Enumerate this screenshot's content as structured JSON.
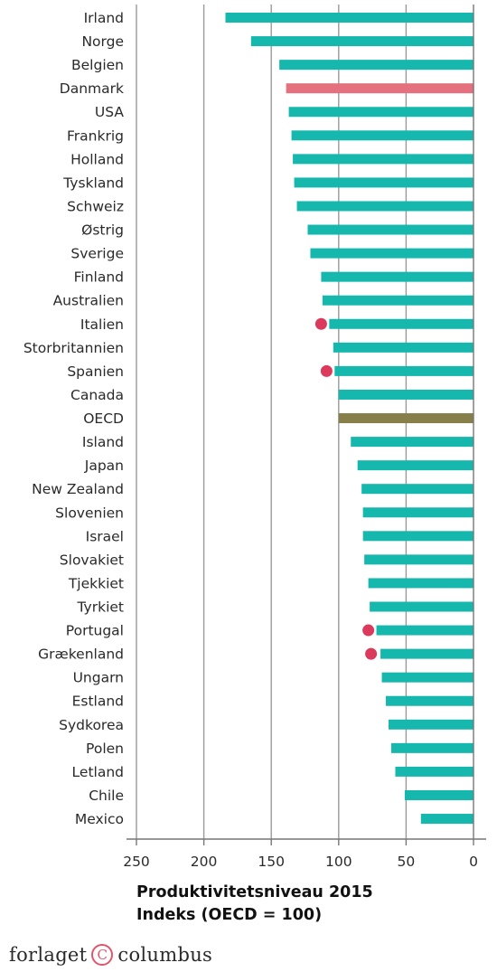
{
  "chart_data": {
    "type": "bar",
    "orientation": "horizontal",
    "xlabel": "Produktivitetsniveau 2015",
    "xlabel2": "Indeks (OECD = 100)",
    "xlim": [
      250,
      0
    ],
    "xticks": [
      250,
      200,
      150,
      100,
      50,
      0
    ],
    "grid": true,
    "colors": {
      "default": "#16b8ad",
      "highlight": "#e5707e",
      "benchmark": "#877f49",
      "marker": "#dc3a5c"
    },
    "categories": [
      "Irland",
      "Norge",
      "Belgien",
      "Danmark",
      "USA",
      "Frankrig",
      "Holland",
      "Tyskland",
      "Schweiz",
      "Østrig",
      "Sverige",
      "Finland",
      "Australien",
      "Italien",
      "Storbritannien",
      "Spanien",
      "Canada",
      "OECD",
      "Island",
      "Japan",
      "New Zealand",
      "Slovenien",
      "Israel",
      "Slovakiet",
      "Tjekkiet",
      "Tyrkiet",
      "Portugal",
      "Grækenland",
      "Ungarn",
      "Estland",
      "Sydkorea",
      "Polen",
      "Letland",
      "Chile",
      "Mexico"
    ],
    "values": [
      184,
      165,
      144,
      139,
      137,
      135,
      134,
      133,
      131,
      123,
      121,
      113,
      112,
      107,
      104,
      103,
      100,
      100,
      91,
      86,
      83,
      82,
      82,
      81,
      78,
      77,
      72,
      69,
      68,
      65,
      63,
      61,
      58,
      51,
      39
    ],
    "bar_roles": [
      "default",
      "default",
      "default",
      "highlight",
      "default",
      "default",
      "default",
      "default",
      "default",
      "default",
      "default",
      "default",
      "default",
      "default",
      "default",
      "default",
      "default",
      "benchmark",
      "default",
      "default",
      "default",
      "default",
      "default",
      "default",
      "default",
      "default",
      "default",
      "default",
      "default",
      "default",
      "default",
      "default",
      "default",
      "default",
      "default"
    ],
    "markers": [
      {
        "category": "Italien",
        "value": 113
      },
      {
        "category": "Spanien",
        "value": 109
      },
      {
        "category": "Portugal",
        "value": 78
      },
      {
        "category": "Grækenland",
        "value": 76
      }
    ]
  },
  "logo": {
    "left": "forlaget",
    "mark": "C",
    "right": "columbus"
  }
}
